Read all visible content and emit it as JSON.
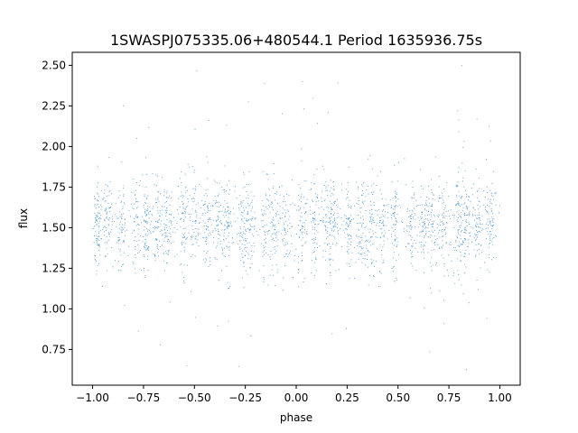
{
  "chart_data": {
    "type": "scatter",
    "title": "1SWASPJ075335.06+480544.1 Period 1635936.75s",
    "xlabel": "phase",
    "ylabel": "flux",
    "xlim": [
      -1.1,
      1.1
    ],
    "ylim": [
      0.53,
      2.58
    ],
    "x_ticks": [
      -1.0,
      -0.75,
      -0.5,
      -0.25,
      0.0,
      0.25,
      0.5,
      0.75,
      1.0
    ],
    "x_tick_labels": [
      "−1.00",
      "−0.75",
      "−0.50",
      "−0.25",
      "0.00",
      "0.25",
      "0.50",
      "0.75",
      "1.00"
    ],
    "y_ticks": [
      0.75,
      1.0,
      1.25,
      1.5,
      1.75,
      2.0,
      2.25,
      2.5
    ],
    "y_tick_labels": [
      "0.75",
      "1.00",
      "1.25",
      "1.50",
      "1.75",
      "2.00",
      "2.25",
      "2.50"
    ],
    "grid": false,
    "legend": "none",
    "point_color": "#1f77b4",
    "series_summary": {
      "x_range": [
        -1.0,
        1.0
      ],
      "flux_core_range": [
        1.3,
        1.75
      ],
      "flux_median": 1.52,
      "flux_extremes": [
        0.62,
        2.52
      ],
      "n_points_estimate": 60000
    }
  }
}
